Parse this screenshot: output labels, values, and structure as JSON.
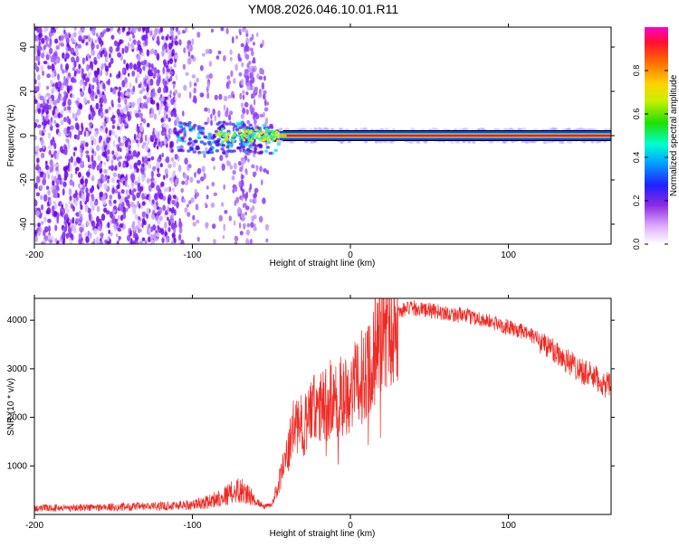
{
  "title": "YM08.2026.046.10.01.R11",
  "chart_data": [
    {
      "type": "heatmap",
      "name": "spectrogram",
      "xlabel": "Height of straight line (km)",
      "ylabel": "Frequency (Hz)",
      "xlim": [
        -200,
        165
      ],
      "ylim": [
        -49,
        49
      ],
      "xticks": [
        -200,
        -100,
        0,
        100
      ],
      "yticks": [
        -40,
        -20,
        0,
        20,
        40
      ],
      "colorbar": {
        "label": "Normalized spectral amplitude",
        "range": [
          0,
          1
        ],
        "ticks": [
          "0.0",
          "0.2",
          "0.4",
          "0.6",
          "0.8"
        ],
        "tick_values": [
          0,
          0.2,
          0.4,
          0.6,
          0.8
        ],
        "colormap": "rainbow (white-violet-blue-cyan-green-yellow-orange-red-magenta)"
      },
      "features": {
        "broadband_noise_x_range": [
          -200,
          -52
        ],
        "ridge_start_x": -110,
        "strong_line_x_range": [
          -45,
          165
        ],
        "line_frequency_hz": 0
      }
    },
    {
      "type": "line",
      "name": "snr",
      "xlabel": "Height of straight line (km)",
      "ylabel": "SNR (10 * v/v)",
      "xlim": [
        -200,
        165
      ],
      "ylim": [
        0,
        4450
      ],
      "xticks": [
        -200,
        -100,
        0,
        100
      ],
      "yticks": [
        1000,
        2000,
        3000,
        4000
      ],
      "color": "#ee2a24",
      "envelope": {
        "x": [
          -200,
          -150,
          -120,
          -100,
          -90,
          -80,
          -70,
          -60,
          -55,
          -50,
          -45,
          -40,
          -35,
          -30,
          -25,
          -20,
          -15,
          -10,
          -5,
          0,
          5,
          10,
          15,
          20,
          25,
          30,
          35,
          40,
          50,
          60,
          70,
          80,
          90,
          100,
          110,
          120,
          125,
          130,
          140,
          150,
          160,
          165
        ],
        "y": [
          130,
          150,
          170,
          200,
          260,
          380,
          520,
          280,
          160,
          180,
          700,
          1200,
          1900,
          1800,
          2150,
          2150,
          2300,
          2450,
          2450,
          2550,
          2700,
          3000,
          3400,
          3700,
          3950,
          4150,
          4230,
          4250,
          4200,
          4150,
          4100,
          4050,
          3950,
          3850,
          3750,
          3600,
          3450,
          3350,
          3100,
          2900,
          2700,
          2600
        ]
      }
    }
  ]
}
